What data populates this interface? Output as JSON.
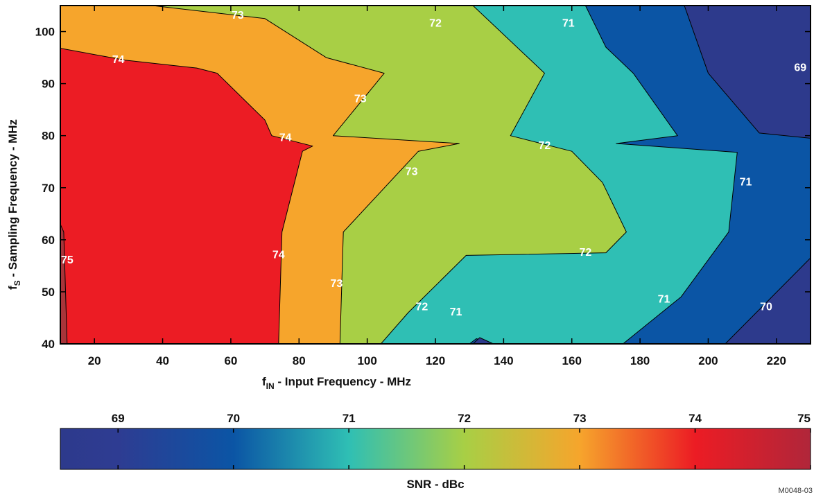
{
  "chart_data": {
    "type": "contour",
    "xlabel": {
      "main": "f",
      "sub": "IN",
      "rest": " - Input Frequency - MHz"
    },
    "ylabel": {
      "main": "f",
      "sub": "S",
      "rest": " - Sampling Frequency - MHz"
    },
    "xlim": [
      10,
      230
    ],
    "ylim": [
      40,
      105
    ],
    "xticks": [
      20,
      40,
      60,
      80,
      100,
      120,
      140,
      160,
      180,
      200,
      220
    ],
    "yticks": [
      40,
      50,
      60,
      70,
      80,
      90,
      100
    ],
    "colorbar": {
      "label": "SNR - dBc",
      "range": [
        68.5,
        75
      ],
      "ticks": [
        69,
        70,
        71,
        72,
        73,
        74,
        75
      ],
      "stops": [
        {
          "v": 68.5,
          "color": "#2d3a8c"
        },
        {
          "v": 69.0,
          "color": "#2e3c92"
        },
        {
          "v": 70.0,
          "color": "#0b55a5"
        },
        {
          "v": 71.0,
          "color": "#2fbfb4"
        },
        {
          "v": 72.0,
          "color": "#a8cf45"
        },
        {
          "v": 73.0,
          "color": "#f6a52c"
        },
        {
          "v": 74.0,
          "color": "#ec1c24"
        },
        {
          "v": 75.0,
          "color": "#b0263a"
        }
      ]
    },
    "regions": [
      {
        "level": 68.5,
        "color": "#2d3a8c",
        "points": [
          [
            10,
            40
          ],
          [
            230,
            40
          ],
          [
            230,
            105
          ],
          [
            10,
            105
          ]
        ]
      },
      {
        "level": 70,
        "color": "#0b55a5",
        "points": [
          [
            10,
            40
          ],
          [
            205,
            40
          ],
          [
            230,
            56.5
          ],
          [
            230,
            79.5
          ],
          [
            215,
            80.5
          ],
          [
            200,
            92
          ],
          [
            193,
            105
          ],
          [
            10,
            105
          ]
        ]
      },
      {
        "level": 71,
        "color": "#2fbfb4",
        "points": [
          [
            10,
            40
          ],
          [
            175,
            40
          ],
          [
            192,
            49
          ],
          [
            206,
            61.5
          ],
          [
            208.5,
            76.8
          ],
          [
            173,
            78.5
          ],
          [
            191,
            80
          ],
          [
            178,
            92
          ],
          [
            170,
            97
          ],
          [
            164,
            105
          ],
          [
            10,
            105
          ]
        ]
      },
      {
        "level": 72,
        "color": "#a8cf45",
        "points": [
          [
            10,
            40
          ],
          [
            104,
            40
          ],
          [
            112,
            46
          ],
          [
            129,
            57
          ],
          [
            170,
            57.5
          ],
          [
            176,
            61.5
          ],
          [
            169,
            71
          ],
          [
            160,
            77
          ],
          [
            142,
            80
          ],
          [
            152,
            92
          ],
          [
            131,
            105
          ],
          [
            10,
            105
          ]
        ]
      },
      {
        "level": 73,
        "color": "#f6a52c",
        "points": [
          [
            10,
            40
          ],
          [
            92,
            40
          ],
          [
            93,
            61.5
          ],
          [
            115,
            77
          ],
          [
            127,
            78.5
          ],
          [
            90,
            80
          ],
          [
            105,
            92
          ],
          [
            88,
            95
          ],
          [
            70,
            102.5
          ],
          [
            37,
            105
          ],
          [
            10,
            105
          ]
        ]
      },
      {
        "level": 74,
        "color": "#ec1c24",
        "points": [
          [
            10,
            40
          ],
          [
            74,
            40
          ],
          [
            75,
            61.5
          ],
          [
            81,
            77
          ],
          [
            84,
            78
          ],
          [
            78,
            79
          ],
          [
            72,
            80
          ],
          [
            70,
            83
          ],
          [
            56,
            92
          ],
          [
            50,
            93
          ],
          [
            29,
            94.5
          ],
          [
            10,
            96.8
          ]
        ]
      },
      {
        "level": 75,
        "color": "#a8353a",
        "points": [
          [
            10,
            40
          ],
          [
            12,
            40
          ],
          [
            11,
            61.5
          ],
          [
            10,
            63
          ]
        ]
      },
      {
        "level": 70,
        "color": "#0b55a5",
        "points": [
          [
            130,
            40
          ],
          [
            137,
            40
          ],
          [
            132,
            41
          ]
        ]
      },
      {
        "level": 69,
        "color": "#2d3a8c",
        "points": [
          [
            131,
            40
          ],
          [
            137,
            40
          ],
          [
            133,
            41.2
          ]
        ]
      }
    ],
    "contour_labels": [
      {
        "x": 62,
        "y": 103,
        "text": "73"
      },
      {
        "x": 27,
        "y": 94.5,
        "text": "74"
      },
      {
        "x": 120,
        "y": 101.5,
        "text": "72"
      },
      {
        "x": 159,
        "y": 101.5,
        "text": "71"
      },
      {
        "x": 227,
        "y": 93,
        "text": "69"
      },
      {
        "x": 98,
        "y": 87,
        "text": "73"
      },
      {
        "x": 76,
        "y": 79.5,
        "text": "74"
      },
      {
        "x": 152,
        "y": 78,
        "text": "72"
      },
      {
        "x": 113,
        "y": 73,
        "text": "73"
      },
      {
        "x": 211,
        "y": 71,
        "text": "71"
      },
      {
        "x": 12,
        "y": 56,
        "text": "75"
      },
      {
        "x": 74,
        "y": 57,
        "text": "74"
      },
      {
        "x": 164,
        "y": 57.5,
        "text": "72"
      },
      {
        "x": 91,
        "y": 51.5,
        "text": "73"
      },
      {
        "x": 187,
        "y": 48.5,
        "text": "71"
      },
      {
        "x": 217,
        "y": 47,
        "text": "70"
      },
      {
        "x": 116,
        "y": 47,
        "text": "72"
      },
      {
        "x": 126,
        "y": 46,
        "text": "71"
      }
    ]
  },
  "figure_id": "M0048-03"
}
